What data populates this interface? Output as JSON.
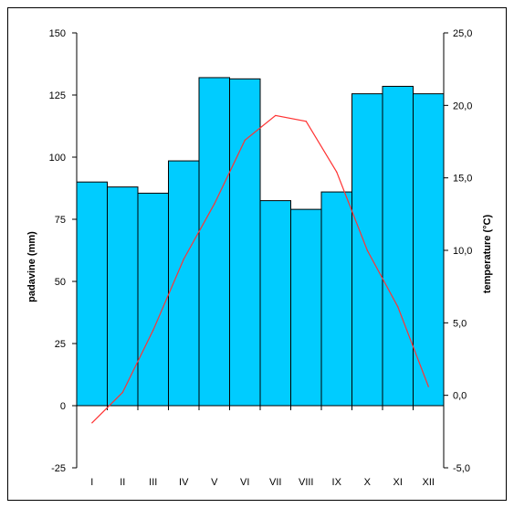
{
  "chart_data": {
    "type": "bar",
    "categories": [
      "I",
      "II",
      "III",
      "IV",
      "V",
      "VI",
      "VII",
      "VIII",
      "IX",
      "X",
      "XI",
      "XII"
    ],
    "series": [
      {
        "type": "bar",
        "axis": "left",
        "values": [
          90,
          88,
          85.5,
          98.5,
          132,
          131.5,
          82.5,
          79,
          86,
          125.5,
          128.5,
          125.5
        ],
        "color": "#00CCFF"
      },
      {
        "type": "line",
        "axis": "right",
        "values": [
          -1.9,
          0.2,
          4.5,
          9.4,
          13.2,
          17.6,
          19.3,
          18.9,
          15.4,
          10.0,
          6.1,
          0.6
        ],
        "color": "#FF3333"
      }
    ],
    "ylabel": "padavine (mm)",
    "ylabel_right": "temperature (°C)",
    "ylim": [
      -25,
      150
    ],
    "ylim_right": [
      -5,
      25
    ],
    "yticks": [
      "-25",
      "0",
      "25",
      "50",
      "75",
      "100",
      "125",
      "150"
    ],
    "yticks_right": [
      "-5,0",
      "0,0",
      "5,0",
      "10,0",
      "15,0",
      "20,0",
      "25,0"
    ],
    "grid": false,
    "legend": "none"
  }
}
